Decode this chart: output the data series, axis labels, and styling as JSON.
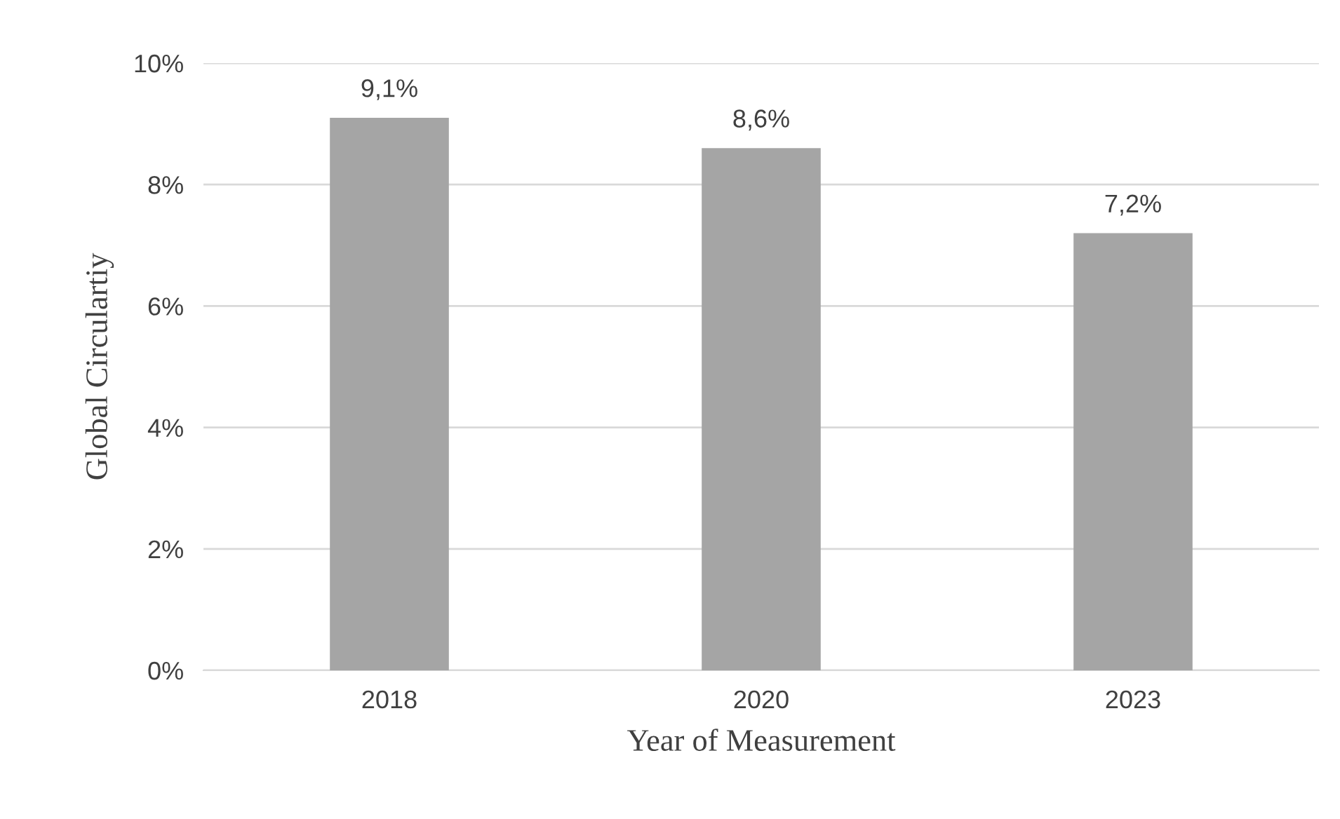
{
  "chart_data": {
    "type": "bar",
    "xlabel": "Year of Measurement",
    "ylabel": "Global Circulartiy",
    "categories": [
      "2018",
      "2020",
      "2023"
    ],
    "series": [
      {
        "color": "#a5a5a5",
        "values": [
          9.1,
          8.6,
          7.2
        ],
        "value_labels": [
          "9,1%",
          "8,6%",
          "7,2%"
        ]
      }
    ],
    "ylim": [
      0,
      10
    ],
    "yticks": [
      {
        "value": 0,
        "label": "0%"
      },
      {
        "value": 2,
        "label": "2%"
      },
      {
        "value": 4,
        "label": "4%"
      },
      {
        "value": 6,
        "label": "6%"
      },
      {
        "value": 8,
        "label": "8%"
      },
      {
        "value": 10,
        "label": "10%"
      }
    ],
    "grid": "y",
    "legend": false
  }
}
